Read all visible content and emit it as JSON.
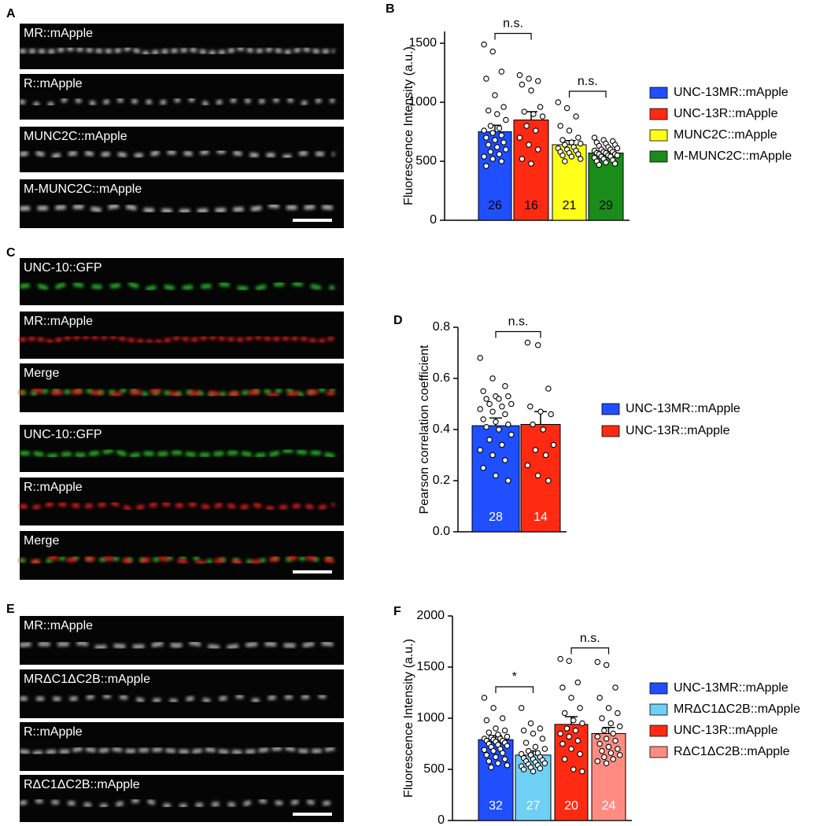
{
  "panels": {
    "letters": [
      "A",
      "B",
      "C",
      "D",
      "E",
      "F"
    ],
    "images": {
      "A": [
        "MR::mApple",
        "R::mApple",
        "MUNC2C::mApple",
        "M-MUNC2C::mApple"
      ],
      "C": [
        "UNC-10::GFP",
        "MR::mApple",
        "Merge",
        "UNC-10::GFP",
        "R::mApple",
        "Merge"
      ],
      "E": [
        "MR::mApple",
        "MRΔC1ΔC2B::mApple",
        "R::mApple",
        "RΔC1ΔC2B::mApple"
      ]
    }
  },
  "chart_data": [
    {
      "type": "bar",
      "ylabel": "Fluorescence Intensity (a.u.)",
      "ylim": [
        0,
        1600
      ],
      "yticks": [
        0,
        500,
        1000,
        1500
      ],
      "n_label_color": "#000000",
      "series": [
        {
          "name": "UNC-13MR::mApple",
          "color": "#1f4fff",
          "values": [
            750
          ],
          "errors": [
            55
          ],
          "n": 26,
          "points": [
            1490,
            1430,
            1260,
            1200,
            1060,
            960,
            930,
            900,
            850,
            800,
            780,
            760,
            740,
            720,
            700,
            680,
            660,
            640,
            620,
            600,
            580,
            560,
            540,
            520,
            500,
            460
          ]
        },
        {
          "name": "UNC-13R::mApple",
          "color": "#ff2a12",
          "values": [
            850
          ],
          "errors": [
            70
          ],
          "n": 16,
          "points": [
            1230,
            1200,
            1180,
            1150,
            1100,
            960,
            920,
            900,
            880,
            800,
            760,
            700,
            640,
            600,
            520,
            480
          ]
        },
        {
          "name": "MUNC2C::mApple",
          "color": "#ffff1a",
          "values": [
            640
          ],
          "errors": [
            35
          ],
          "n": 21,
          "points": [
            1000,
            950,
            880,
            800,
            760,
            700,
            680,
            660,
            650,
            640,
            620,
            610,
            600,
            590,
            580,
            570,
            560,
            550,
            540,
            520,
            500
          ]
        },
        {
          "name": "M-MUNC2C::mApple",
          "color": "#1a8c1a",
          "values": [
            570
          ],
          "errors": [
            15
          ],
          "n": 29,
          "points": [
            700,
            680,
            670,
            660,
            650,
            640,
            630,
            620,
            610,
            600,
            600,
            590,
            580,
            580,
            570,
            570,
            560,
            560,
            550,
            550,
            540,
            540,
            530,
            520,
            510,
            500,
            490,
            480,
            470
          ]
        }
      ],
      "brackets": [
        {
          "label": "n.s.",
          "between": [
            0,
            1
          ]
        },
        {
          "label": "n.s.",
          "between": [
            2,
            3
          ]
        }
      ]
    },
    {
      "type": "bar",
      "ylabel": "Pearson correlation coefficient",
      "ylim": [
        0,
        0.8
      ],
      "yticks": [
        {
          "value": 0,
          "label": "0.0"
        },
        0.2,
        0.4,
        0.6,
        0.8
      ],
      "n_label_color": "#ffffff",
      "series": [
        {
          "name": "UNC-13MR::mApple",
          "color": "#1f4fff",
          "values": [
            0.415
          ],
          "errors": [
            0.03
          ],
          "n": 28,
          "points": [
            0.68,
            0.6,
            0.57,
            0.55,
            0.53,
            0.53,
            0.52,
            0.52,
            0.5,
            0.5,
            0.49,
            0.48,
            0.47,
            0.46,
            0.44,
            0.43,
            0.42,
            0.41,
            0.4,
            0.38,
            0.36,
            0.34,
            0.32,
            0.3,
            0.28,
            0.25,
            0.22,
            0.2
          ]
        },
        {
          "name": "UNC-13R::mApple",
          "color": "#ff2a12",
          "values": [
            0.42
          ],
          "errors": [
            0.05
          ],
          "n": 14,
          "points": [
            0.74,
            0.73,
            0.56,
            0.49,
            0.47,
            0.46,
            0.42,
            0.4,
            0.34,
            0.32,
            0.3,
            0.26,
            0.22,
            0.2
          ]
        }
      ],
      "brackets": [
        {
          "label": "n.s.",
          "between": [
            0,
            1
          ]
        }
      ]
    },
    {
      "type": "bar",
      "ylabel": "Fluorescence Intensity (a.u.)",
      "ylim": [
        0,
        2000
      ],
      "yticks": [
        0,
        500,
        1000,
        1500,
        2000
      ],
      "n_label_color": "#ffffff",
      "series": [
        {
          "name": "UNC-13MR::mApple",
          "color": "#1f4fff",
          "values": [
            790
          ],
          "errors": [
            40
          ],
          "n": 32,
          "points": [
            1200,
            1100,
            1000,
            980,
            900,
            880,
            860,
            840,
            820,
            810,
            800,
            800,
            790,
            780,
            780,
            770,
            760,
            750,
            740,
            730,
            720,
            700,
            690,
            680,
            660,
            640,
            620,
            600,
            580,
            560,
            540,
            520
          ]
        },
        {
          "name": "MRΔC1ΔC2B::mApple",
          "color": "#6fcff5",
          "values": [
            640
          ],
          "errors": [
            40
          ],
          "n": 27,
          "points": [
            1100,
            950,
            900,
            880,
            850,
            800,
            760,
            720,
            700,
            680,
            660,
            650,
            640,
            620,
            610,
            600,
            590,
            580,
            570,
            560,
            550,
            540,
            530,
            520,
            510,
            500,
            480
          ]
        },
        {
          "name": "UNC-13R::mApple",
          "color": "#ff2a12",
          "values": [
            940
          ],
          "errors": [
            75
          ],
          "n": 20,
          "points": [
            1580,
            1560,
            1350,
            1300,
            1200,
            1100,
            1050,
            980,
            950,
            900,
            880,
            850,
            820,
            780,
            750,
            700,
            650,
            600,
            500,
            480
          ]
        },
        {
          "name": "RΔC1ΔC2B::mApple",
          "color": "#ff8c82",
          "values": [
            850
          ],
          "errors": [
            60
          ],
          "n": 24,
          "points": [
            1550,
            1520,
            1300,
            1200,
            1100,
            1050,
            1000,
            950,
            920,
            880,
            850,
            820,
            800,
            780,
            750,
            720,
            700,
            680,
            660,
            640,
            620,
            600,
            580,
            560
          ]
        }
      ],
      "brackets": [
        {
          "label": "*",
          "between": [
            0,
            1
          ]
        },
        {
          "label": "n.s.",
          "between": [
            2,
            3
          ]
        }
      ]
    }
  ]
}
